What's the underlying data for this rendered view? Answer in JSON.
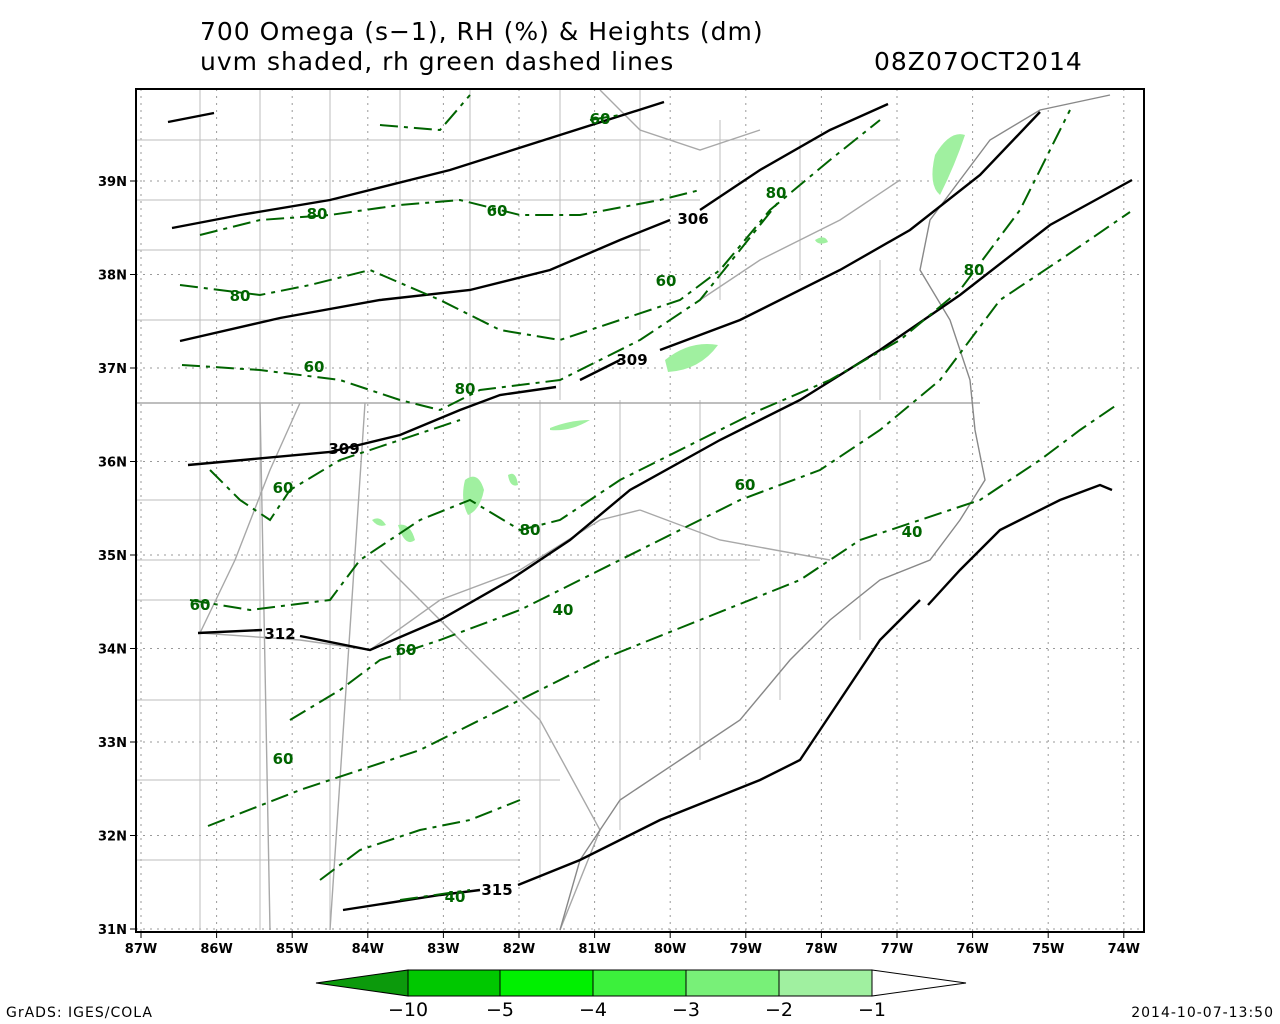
{
  "title_line1": "700 Omega (s−1), RH (%) & Heights (dm)",
  "title_line2": "uvm shaded, rh green dashed lines",
  "valid_time": "08Z07OCT2014",
  "lon_ticks": [
    "87W",
    "86W",
    "85W",
    "84W",
    "83W",
    "82W",
    "81W",
    "80W",
    "79W",
    "78W",
    "77W",
    "76W",
    "75W",
    "74W"
  ],
  "lat_ticks": [
    "31N",
    "32N",
    "33N",
    "34N",
    "35N",
    "36N",
    "37N",
    "38N",
    "39N"
  ],
  "height_contour_labels": [
    "306",
    "309",
    "309",
    "312",
    "315"
  ],
  "rh_contour_labels": [
    "60",
    "60",
    "80",
    "80",
    "80",
    "60",
    "80",
    "60",
    "80",
    "60",
    "60",
    "80",
    "40",
    "60",
    "40",
    "60",
    "60",
    "40"
  ],
  "colorbar": {
    "labels": [
      "−10",
      "−5",
      "−4",
      "−3",
      "−2",
      "−1"
    ],
    "colors": [
      "#0c9a0c",
      "#00c800",
      "#00f000",
      "#3cf03c",
      "#78f078",
      "#a0f0a0",
      "#ffffff"
    ]
  },
  "footer_left": "GrADS: IGES/COLA",
  "footer_right": "2014-10-07-13:50"
}
